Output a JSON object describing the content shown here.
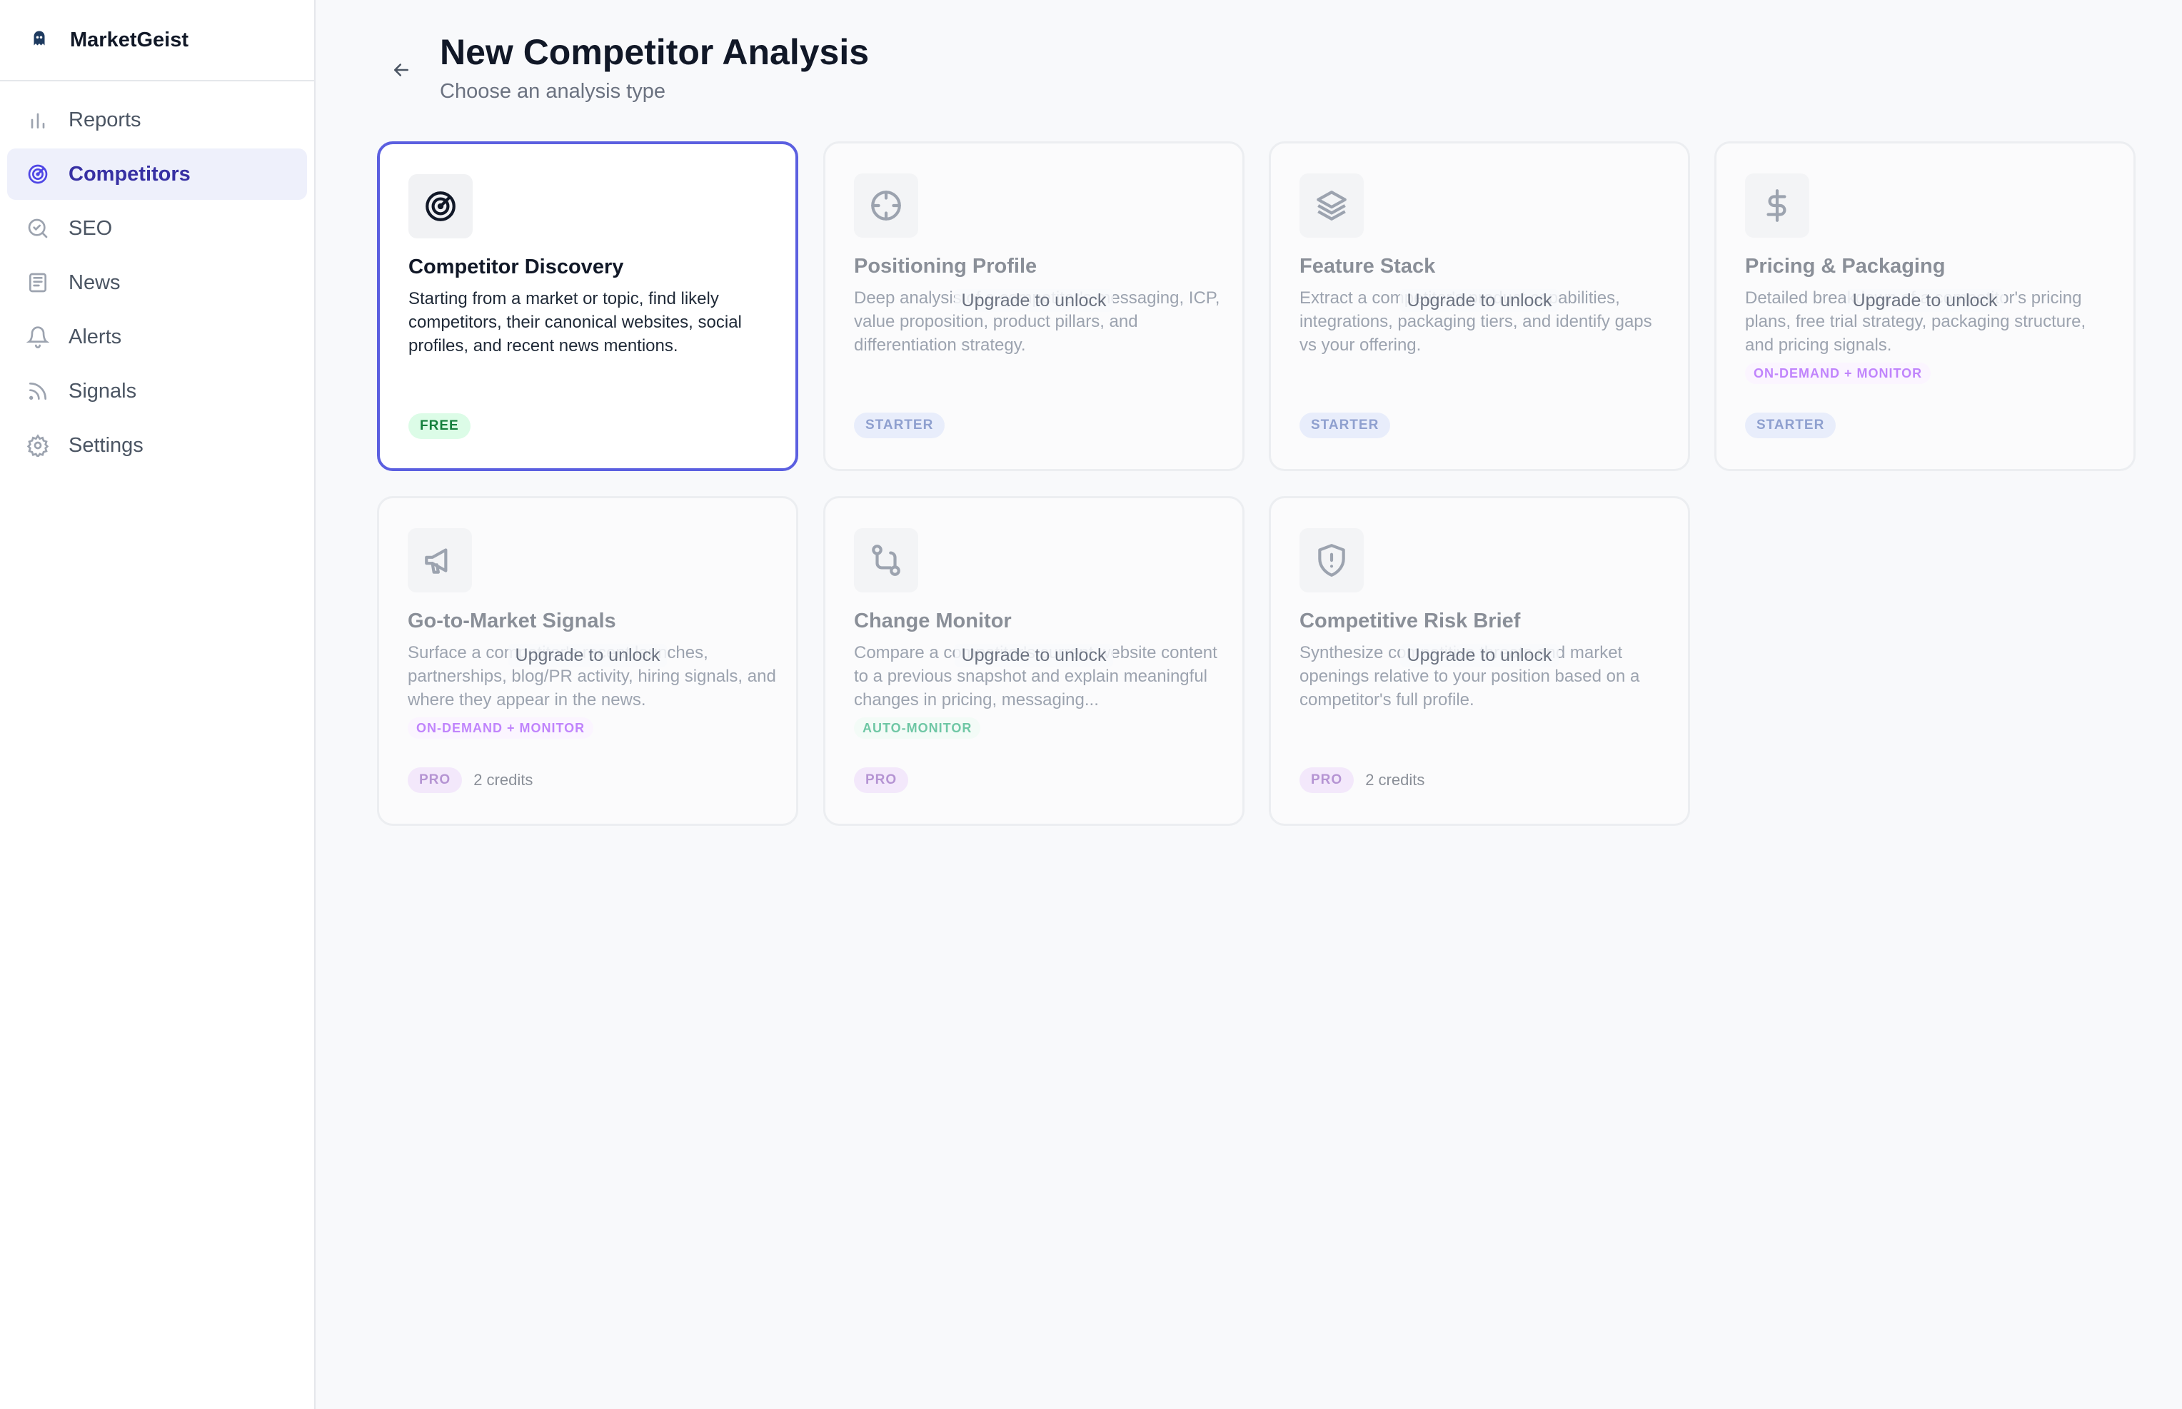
{
  "app": {
    "name": "MarketGeist"
  },
  "sidebar": {
    "items": [
      {
        "label": "Reports",
        "icon": "bar-chart-icon",
        "active": false
      },
      {
        "label": "Competitors",
        "icon": "radar-icon",
        "active": true
      },
      {
        "label": "SEO",
        "icon": "search-icon",
        "active": false
      },
      {
        "label": "News",
        "icon": "newspaper-icon",
        "active": false
      },
      {
        "label": "Alerts",
        "icon": "bell-icon",
        "active": false
      },
      {
        "label": "Signals",
        "icon": "rss-icon",
        "active": false
      },
      {
        "label": "Settings",
        "icon": "gear-icon",
        "active": false
      }
    ]
  },
  "header": {
    "title": "New Competitor Analysis",
    "subtitle": "Choose an analysis type"
  },
  "locked_overlay": "Upgrade to unlock",
  "cards": [
    {
      "title": "Competitor Discovery",
      "description": "Starting from a market or topic, find likely competitors, their canonical websites, social profiles, and recent news mentions.",
      "tier": "FREE",
      "icon": "radar-icon",
      "selected": true,
      "locked": false
    },
    {
      "title": "Positioning Profile",
      "description": "Deep analysis of a competitor's messaging, ICP, value proposition, product pillars, and differentiation strategy.",
      "tier": "STARTER",
      "icon": "crosshair-icon",
      "locked": true
    },
    {
      "title": "Feature Stack",
      "description": "Extract a competitor's product capabilities, integrations, packaging tiers, and identify gaps vs your offering.",
      "tier": "STARTER",
      "icon": "layers-icon",
      "locked": true
    },
    {
      "title": "Pricing & Packaging",
      "description": "Detailed breakdown of a competitor's pricing plans, free trial strategy, packaging structure, and pricing signals.",
      "mode": "ON-DEMAND + MONITOR",
      "tier": "STARTER",
      "icon": "dollar-icon",
      "locked": true
    },
    {
      "title": "Go-to-Market Signals",
      "description": "Surface a competitor's recent launches, partnerships, blog/PR activity, hiring signals, and where they appear in the news.",
      "mode": "ON-DEMAND + MONITOR",
      "tier": "PRO",
      "credits": "2 credits",
      "icon": "megaphone-icon",
      "locked": true
    },
    {
      "title": "Change Monitor",
      "description": "Compare a competitor's current website content to a previous snapshot and explain meaningful changes in pricing, messaging...",
      "mode": "AUTO-MONITOR",
      "tier": "PRO",
      "icon": "git-compare-icon",
      "locked": true
    },
    {
      "title": "Competitive Risk Brief",
      "description": "Synthesize competitive threats and market openings relative to your position based on a competitor's full profile.",
      "tier": "PRO",
      "credits": "2 credits",
      "icon": "shield-alert-icon",
      "locked": true
    }
  ],
  "colors": {
    "accent": "#5b5fe0",
    "active_nav_bg": "#eef0fb",
    "free_badge": "#dcfce7",
    "starter_badge": "#e8edfb",
    "pro_badge": "#f3e8fb"
  }
}
